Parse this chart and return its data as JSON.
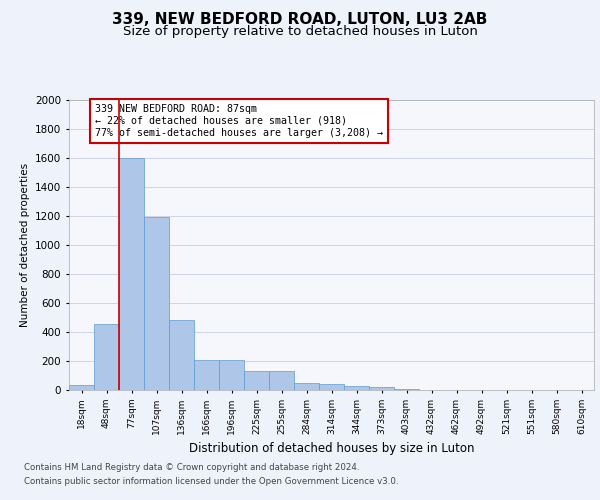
{
  "title1": "339, NEW BEDFORD ROAD, LUTON, LU3 2AB",
  "title2": "Size of property relative to detached houses in Luton",
  "xlabel": "Distribution of detached houses by size in Luton",
  "ylabel": "Number of detached properties",
  "bar_labels": [
    "18sqm",
    "48sqm",
    "77sqm",
    "107sqm",
    "136sqm",
    "166sqm",
    "196sqm",
    "225sqm",
    "255sqm",
    "284sqm",
    "314sqm",
    "344sqm",
    "373sqm",
    "403sqm",
    "432sqm",
    "462sqm",
    "492sqm",
    "521sqm",
    "551sqm",
    "580sqm",
    "610sqm"
  ],
  "bar_values": [
    35,
    455,
    1600,
    1195,
    485,
    210,
    210,
    130,
    130,
    50,
    40,
    25,
    20,
    10,
    0,
    0,
    0,
    0,
    0,
    0,
    0
  ],
  "bar_color": "#aec7e8",
  "bar_edge_color": "#5b9bd5",
  "bar_width": 1.0,
  "ylim": [
    0,
    2000
  ],
  "yticks": [
    0,
    200,
    400,
    600,
    800,
    1000,
    1200,
    1400,
    1600,
    1800,
    2000
  ],
  "vline_color": "#cc0000",
  "annotation_line1": "339 NEW BEDFORD ROAD: 87sqm",
  "annotation_line2": "← 22% of detached houses are smaller (918)",
  "annotation_line3": "77% of semi-detached houses are larger (3,208) →",
  "annotation_box_color": "#cc0000",
  "footer1": "Contains HM Land Registry data © Crown copyright and database right 2024.",
  "footer2": "Contains public sector information licensed under the Open Government Licence v3.0.",
  "bg_color": "#eef2fa",
  "plot_bg_color": "#f5f7fd",
  "title1_fontsize": 11,
  "title2_fontsize": 9.5
}
